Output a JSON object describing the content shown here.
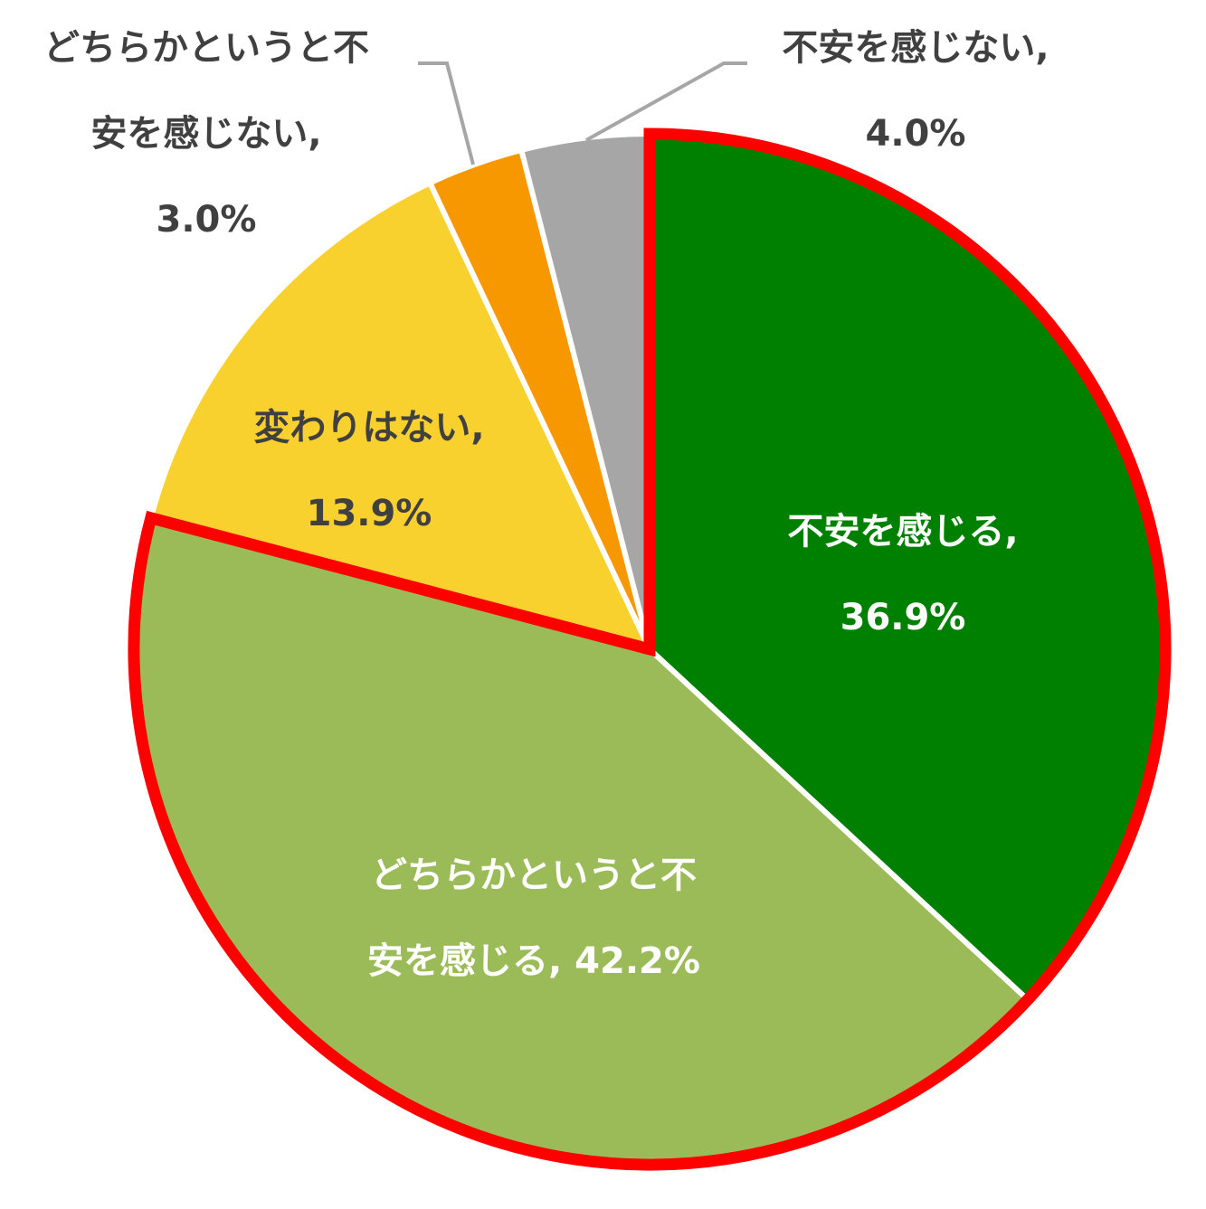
{
  "chart_data": {
    "type": "pie",
    "start_angle_deg": 0,
    "direction": "clockwise",
    "slices": [
      {
        "name": "不安を感じる",
        "value": 36.9,
        "color": "#008000",
        "highlight": true,
        "label_lines": [
          "不安を感じる,",
          "36.9%"
        ],
        "label_color": "#ffffff"
      },
      {
        "name": "どちらかというと不安を感じる",
        "value": 42.2,
        "color": "#9BBB59",
        "highlight": true,
        "label_lines": [
          "どちらかというと不",
          "安を感じる, 42.2%"
        ],
        "label_color": "#ffffff"
      },
      {
        "name": "変わりはない",
        "value": 13.9,
        "color": "#F9D12F",
        "highlight": false,
        "label_lines": [
          "変わりはない,",
          "13.9%"
        ],
        "label_color": "#404040"
      },
      {
        "name": "どちらかというと不安を感じない",
        "value": 3.0,
        "color": "#F79800",
        "highlight": false,
        "label_lines": [
          "どちらかというと不",
          "安を感じない,",
          "3.0%"
        ],
        "label_color": "#404040"
      },
      {
        "name": "不安を感じない",
        "value": 4.0,
        "color": "#A6A6A6",
        "highlight": false,
        "label_lines": [
          "不安を感じない,",
          "4.0%"
        ],
        "label_color": "#404040"
      }
    ],
    "highlight_outline_color": "#FF0000",
    "leader_line_color": "#A6A6A6",
    "legend": "none"
  }
}
